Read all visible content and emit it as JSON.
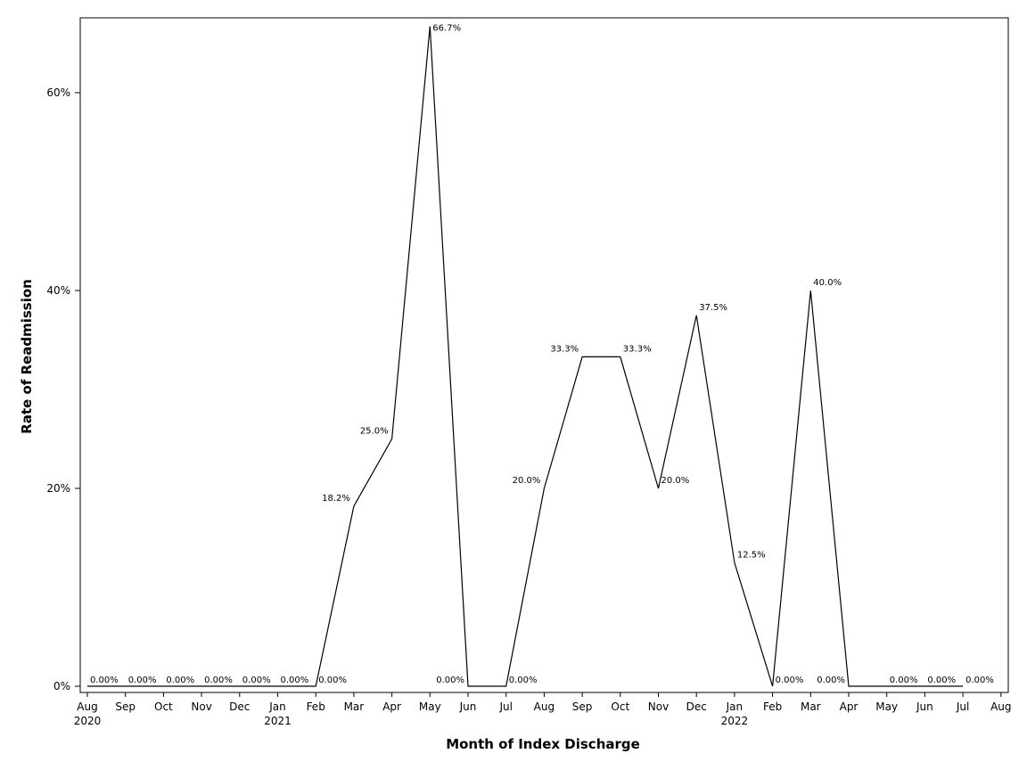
{
  "chart_data": {
    "type": "line",
    "title": "",
    "xlabel": "Month of Index Discharge",
    "ylabel": "Rate of Readmission",
    "x_tick_months": [
      "Aug",
      "Sep",
      "Oct",
      "Nov",
      "Dec",
      "Jan",
      "Feb",
      "Mar",
      "Apr",
      "May",
      "Jun",
      "Jul",
      "Aug",
      "Sep",
      "Oct",
      "Nov",
      "Dec",
      "Jan",
      "Feb",
      "Mar",
      "Apr",
      "May",
      "Jun",
      "Jul",
      "Aug"
    ],
    "x_tick_years": [
      {
        "index": 0,
        "label": "2020"
      },
      {
        "index": 5,
        "label": "2021"
      },
      {
        "index": 17,
        "label": "2022"
      }
    ],
    "y_ticks": [
      {
        "value": 0,
        "label": "0%"
      },
      {
        "value": 20,
        "label": "20%"
      },
      {
        "value": 40,
        "label": "40%"
      },
      {
        "value": 60,
        "label": "60%"
      }
    ],
    "ylim": [
      0,
      66.7
    ],
    "grid": false,
    "series": [
      {
        "x": [
          "2020-08",
          "2020-09",
          "2020-10",
          "2020-11",
          "2020-12",
          "2021-01",
          "2021-02",
          "2021-03",
          "2021-04",
          "2021-05",
          "2021-06",
          "2021-07",
          "2021-08",
          "2021-09",
          "2021-10",
          "2021-11",
          "2021-12",
          "2022-01",
          "2022-02",
          "2022-03",
          "2022-04",
          "2022-05",
          "2022-06",
          "2022-07"
        ],
        "values": [
          0,
          0,
          0,
          0,
          0,
          0,
          0,
          18.2,
          25.0,
          66.7,
          0,
          0,
          20.0,
          33.3,
          33.3,
          20.0,
          37.5,
          12.5,
          0,
          40.0,
          0,
          0,
          0,
          0
        ],
        "labels": [
          "0.00%",
          "0.00%",
          "0.00%",
          "0.00%",
          "0.00%",
          "0.00%",
          "0.00%",
          "18.2%",
          "25.0%",
          "66.7%",
          "0.00%",
          "0.00%",
          "20.0%",
          "33.3%",
          "33.3%",
          "20.0%",
          "37.5%",
          "12.5%",
          "0.00%",
          "40.0%",
          "0.00%",
          "0.00%",
          "0.00%",
          "0.00%"
        ]
      }
    ]
  }
}
